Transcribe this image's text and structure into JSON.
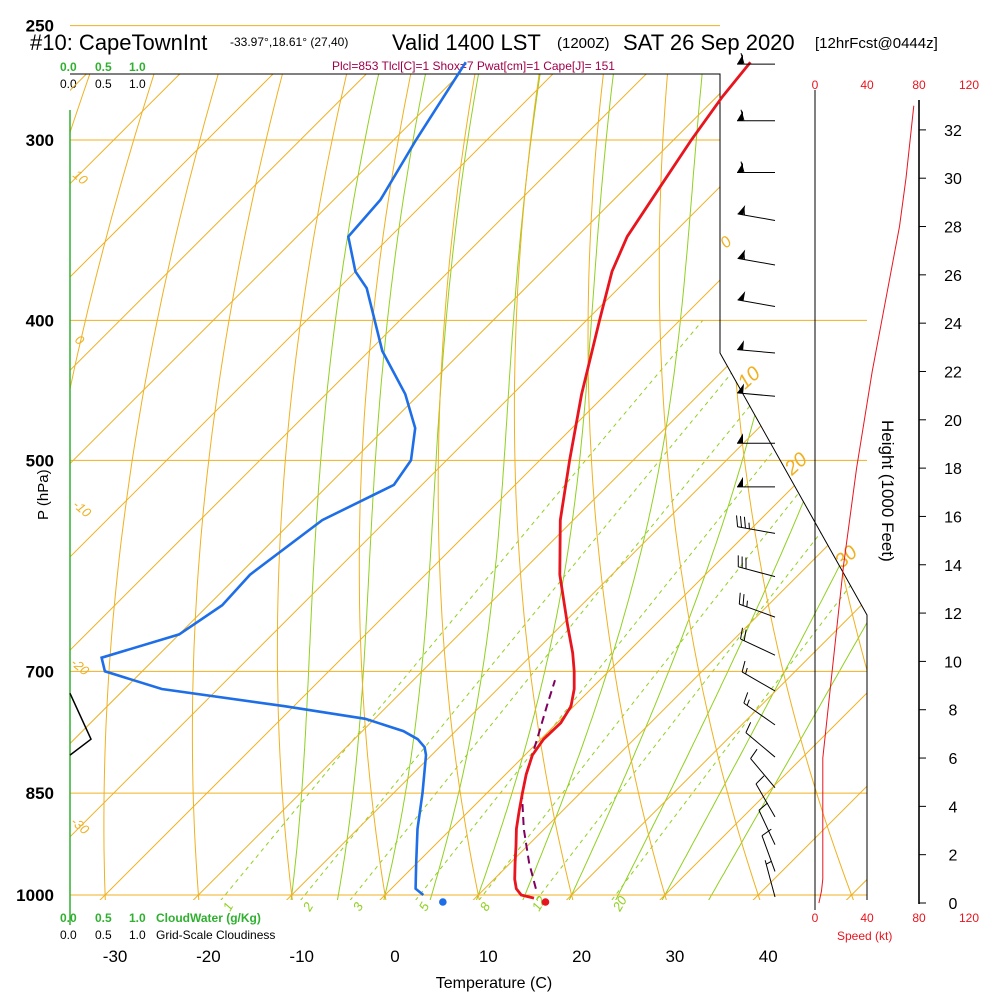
{
  "header": {
    "title_left": "#10: CapeTownInt",
    "coords": "-33.97°,18.61° (27,40)",
    "valid": "Valid 1400 LST",
    "valid_z": "(1200Z)",
    "date": "SAT 26 Sep 2020",
    "forecast": "[12hrFcst@0444z]",
    "indices": "Plcl=853 Tlcl[C]=1 Shox=7 Pwat[cm]=1 Cape[J]= 151"
  },
  "colors": {
    "temp": "#e8141e",
    "dew": "#1e6ee8",
    "parcel": "#800060",
    "isotherm": "#f0b020",
    "dryad": "#f0b020",
    "moistad": "#90d020",
    "mixing": "#90d020",
    "wind": "#e8141e",
    "label": "#e8141e",
    "green": "#30b030",
    "magenta": "#a0004a"
  },
  "axes": {
    "ylabel": "P (hPa)",
    "xlabel": "Temperature (C)",
    "pressure_ticks": [
      "250",
      "300",
      "400",
      "500",
      "700",
      "850",
      "1000"
    ],
    "temp_ticks": [
      "-30",
      "-20",
      "-10",
      "0",
      "10",
      "20",
      "30",
      "40"
    ],
    "height_label": "Height (1000 Feet)",
    "height_ticks": [
      "0",
      "2",
      "4",
      "6",
      "8",
      "10",
      "12",
      "14",
      "16",
      "18",
      "20",
      "22",
      "24",
      "26",
      "28",
      "30",
      "32"
    ],
    "speed_ticks_top": [
      "0",
      "40",
      "80",
      "120"
    ],
    "speed_ticks_bottom": [
      "0",
      "40",
      "80",
      "120"
    ],
    "speed_label": "Speed (kt)"
  },
  "scales": {
    "cloudwater_ticks": [
      "0.0",
      "0.5",
      "1.0"
    ],
    "cloudwater_label": "CloudWater (g/Kg)",
    "cloudiness_ticks": [
      "0.0",
      "0.5",
      "1.0"
    ],
    "cloudiness_label": "Grid-Scale Cloudiness"
  },
  "line_labels": {
    "isotherm": [
      "0",
      "10",
      "20",
      "30"
    ],
    "dryad": [
      "10",
      "0",
      "-10",
      "-20",
      "-30"
    ],
    "mixing": [
      "1",
      "2",
      "3",
      "5",
      "8",
      "12",
      "20"
    ]
  },
  "chart_data": {
    "type": "skew-t",
    "title": "#10: CapeTownInt Valid 1400 LST SAT 26 Sep 2020",
    "xlabel": "Temperature (C)",
    "ylabel": "P (hPa)",
    "pressure_range": [
      250,
      1000
    ],
    "temperature_range": [
      -35,
      45
    ],
    "temperature_profile": [
      {
        "p": 1005,
        "t": 16.3
      },
      {
        "p": 1000,
        "t": 14.6
      },
      {
        "p": 990,
        "t": 13.4
      },
      {
        "p": 975,
        "t": 12.2
      },
      {
        "p": 950,
        "t": 10.5
      },
      {
        "p": 925,
        "t": 8.8
      },
      {
        "p": 900,
        "t": 7.0
      },
      {
        "p": 875,
        "t": 5.4
      },
      {
        "p": 850,
        "t": 3.8
      },
      {
        "p": 825,
        "t": 2.2
      },
      {
        "p": 800,
        "t": 0.8
      },
      {
        "p": 780,
        "t": 0.3
      },
      {
        "p": 760,
        "t": 0.4
      },
      {
        "p": 740,
        "t": -0.3
      },
      {
        "p": 720,
        "t": -1.8
      },
      {
        "p": 700,
        "t": -3.7
      },
      {
        "p": 680,
        "t": -5.8
      },
      {
        "p": 650,
        "t": -9.4
      },
      {
        "p": 600,
        "t": -15.6
      },
      {
        "p": 550,
        "t": -21.4
      },
      {
        "p": 500,
        "t": -26.8
      },
      {
        "p": 450,
        "t": -32.6
      },
      {
        "p": 400,
        "t": -38.6
      },
      {
        "p": 370,
        "t": -42.5
      },
      {
        "p": 350,
        "t": -44.6
      },
      {
        "p": 325,
        "t": -46.3
      },
      {
        "p": 300,
        "t": -48.1
      },
      {
        "p": 280,
        "t": -49.4
      },
      {
        "p": 265,
        "t": -50.1
      }
    ],
    "dewpoint_profile": [
      {
        "p": 1000,
        "t": 4.1
      },
      {
        "p": 990,
        "t": 2.6
      },
      {
        "p": 975,
        "t": 1.6
      },
      {
        "p": 950,
        "t": -0.1
      },
      {
        "p": 900,
        "t": -3.6
      },
      {
        "p": 850,
        "t": -6.9
      },
      {
        "p": 800,
        "t": -10.6
      },
      {
        "p": 790,
        "t": -11.6
      },
      {
        "p": 780,
        "t": -13.2
      },
      {
        "p": 770,
        "t": -15.6
      },
      {
        "p": 755,
        "t": -21.0
      },
      {
        "p": 740,
        "t": -31.0
      },
      {
        "p": 720,
        "t": -46.0
      },
      {
        "p": 700,
        "t": -54.0
      },
      {
        "p": 685,
        "t": -55.8
      },
      {
        "p": 660,
        "t": -50.0
      },
      {
        "p": 630,
        "t": -48.5
      },
      {
        "p": 600,
        "t": -48.8
      },
      {
        "p": 550,
        "t": -46.9
      },
      {
        "p": 520,
        "t": -43.0
      },
      {
        "p": 500,
        "t": -43.8
      },
      {
        "p": 475,
        "t": -46.8
      },
      {
        "p": 450,
        "t": -51.5
      },
      {
        "p": 420,
        "t": -58.6
      },
      {
        "p": 380,
        "t": -67.0
      },
      {
        "p": 370,
        "t": -70.0
      },
      {
        "p": 350,
        "t": -74.5
      },
      {
        "p": 330,
        "t": -75.0
      },
      {
        "p": 300,
        "t": -77.6
      },
      {
        "p": 265,
        "t": -80.6
      }
    ],
    "parcel_profile": [
      {
        "p": 990,
        "t": 15.5
      },
      {
        "p": 950,
        "t": 12.0
      },
      {
        "p": 900,
        "t": 7.8
      },
      {
        "p": 853,
        "t": 4.0
      },
      {
        "p": 820,
        "t": 1.9
      },
      {
        "p": 780,
        "t": -0.4
      },
      {
        "p": 740,
        "t": -2.9
      },
      {
        "p": 710,
        "t": -4.8
      }
    ],
    "surface_temp_marker": {
      "p": 1000,
      "t": 17.2
    },
    "surface_dew_marker": {
      "p": 1000,
      "t": 6.2
    },
    "wind_speed_profile": [
      {
        "h": 0,
        "kt": 3
      },
      {
        "h": 0.5,
        "kt": 5
      },
      {
        "h": 1,
        "kt": 6
      },
      {
        "h": 2,
        "kt": 6
      },
      {
        "h": 4,
        "kt": 6
      },
      {
        "h": 6,
        "kt": 6
      },
      {
        "h": 7,
        "kt": 8
      },
      {
        "h": 8,
        "kt": 10
      },
      {
        "h": 10,
        "kt": 14
      },
      {
        "h": 12,
        "kt": 18
      },
      {
        "h": 14,
        "kt": 22
      },
      {
        "h": 16,
        "kt": 27
      },
      {
        "h": 18,
        "kt": 32
      },
      {
        "h": 20,
        "kt": 38
      },
      {
        "h": 22,
        "kt": 44
      },
      {
        "h": 24,
        "kt": 51
      },
      {
        "h": 26,
        "kt": 58
      },
      {
        "h": 28,
        "kt": 65
      },
      {
        "h": 30,
        "kt": 70
      },
      {
        "h": 32,
        "kt": 74
      },
      {
        "h": 33,
        "kt": 76
      }
    ],
    "wind_barbs": [
      {
        "p": 265,
        "dir": 270,
        "kt": 60
      },
      {
        "p": 290,
        "dir": 270,
        "kt": 60
      },
      {
        "p": 315,
        "dir": 270,
        "kt": 60
      },
      {
        "p": 340,
        "dir": 280,
        "kt": 55
      },
      {
        "p": 365,
        "dir": 280,
        "kt": 55
      },
      {
        "p": 390,
        "dir": 280,
        "kt": 50
      },
      {
        "p": 420,
        "dir": 275,
        "kt": 50
      },
      {
        "p": 450,
        "dir": 275,
        "kt": 50
      },
      {
        "p": 485,
        "dir": 270,
        "kt": 50
      },
      {
        "p": 520,
        "dir": 270,
        "kt": 50
      },
      {
        "p": 560,
        "dir": 280,
        "kt": 35
      },
      {
        "p": 600,
        "dir": 285,
        "kt": 30
      },
      {
        "p": 640,
        "dir": 290,
        "kt": 25
      },
      {
        "p": 680,
        "dir": 295,
        "kt": 20
      },
      {
        "p": 720,
        "dir": 300,
        "kt": 15
      },
      {
        "p": 760,
        "dir": 305,
        "kt": 15
      },
      {
        "p": 800,
        "dir": 310,
        "kt": 10
      },
      {
        "p": 840,
        "dir": 320,
        "kt": 10
      },
      {
        "p": 880,
        "dir": 330,
        "kt": 10
      },
      {
        "p": 920,
        "dir": 335,
        "kt": 10
      },
      {
        "p": 960,
        "dir": 340,
        "kt": 10
      },
      {
        "p": 1000,
        "dir": 345,
        "kt": 5
      }
    ],
    "cloudiness": [
      {
        "p": 725,
        "v": 0.0
      },
      {
        "p": 780,
        "v": 0.3
      },
      {
        "p": 800,
        "v": 0.0
      }
    ]
  }
}
